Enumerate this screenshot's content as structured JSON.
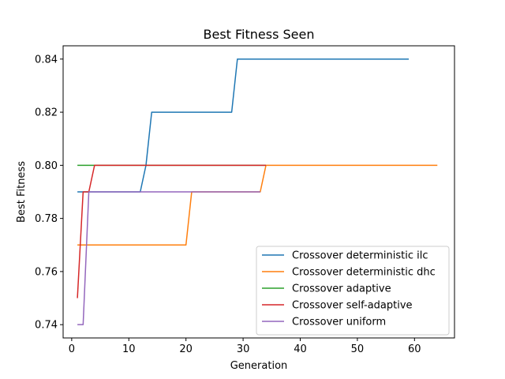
{
  "chart_data": {
    "type": "line",
    "title": "Best Fitness Seen",
    "xlabel": "Generation",
    "ylabel": "Best Fitness",
    "xlim": [
      -1.5,
      67.0
    ],
    "ylim": [
      0.735,
      0.845
    ],
    "xticks": [
      0,
      10,
      20,
      30,
      40,
      50,
      60
    ],
    "yticks": [
      0.74,
      0.76,
      0.78,
      0.8,
      0.82,
      0.84
    ],
    "grid": false,
    "legend_position": "lower-right",
    "series": [
      {
        "name": "Crossover deterministic ilc",
        "color": "#1f77b4",
        "points": [
          [
            1,
            0.79
          ],
          [
            12,
            0.79
          ],
          [
            13,
            0.8
          ],
          [
            14,
            0.82
          ],
          [
            28,
            0.82
          ],
          [
            29,
            0.84
          ],
          [
            59,
            0.84
          ]
        ]
      },
      {
        "name": "Crossover deterministic dhc",
        "color": "#ff7f0e",
        "points": [
          [
            1,
            0.77
          ],
          [
            20,
            0.77
          ],
          [
            21,
            0.79
          ],
          [
            33,
            0.79
          ],
          [
            34,
            0.8
          ],
          [
            64,
            0.8
          ]
        ]
      },
      {
        "name": "Crossover adaptive",
        "color": "#2ca02c",
        "points": [
          [
            1,
            0.8
          ],
          [
            34,
            0.8
          ]
        ]
      },
      {
        "name": "Crossover self-adaptive",
        "color": "#d62728",
        "points": [
          [
            1,
            0.75
          ],
          [
            2,
            0.79
          ],
          [
            3,
            0.79
          ],
          [
            4,
            0.8
          ],
          [
            34,
            0.8
          ]
        ]
      },
      {
        "name": "Crossover uniform",
        "color": "#9467bd",
        "points": [
          [
            1,
            0.74
          ],
          [
            2,
            0.74
          ],
          [
            3,
            0.79
          ],
          [
            33,
            0.79
          ]
        ]
      }
    ]
  }
}
